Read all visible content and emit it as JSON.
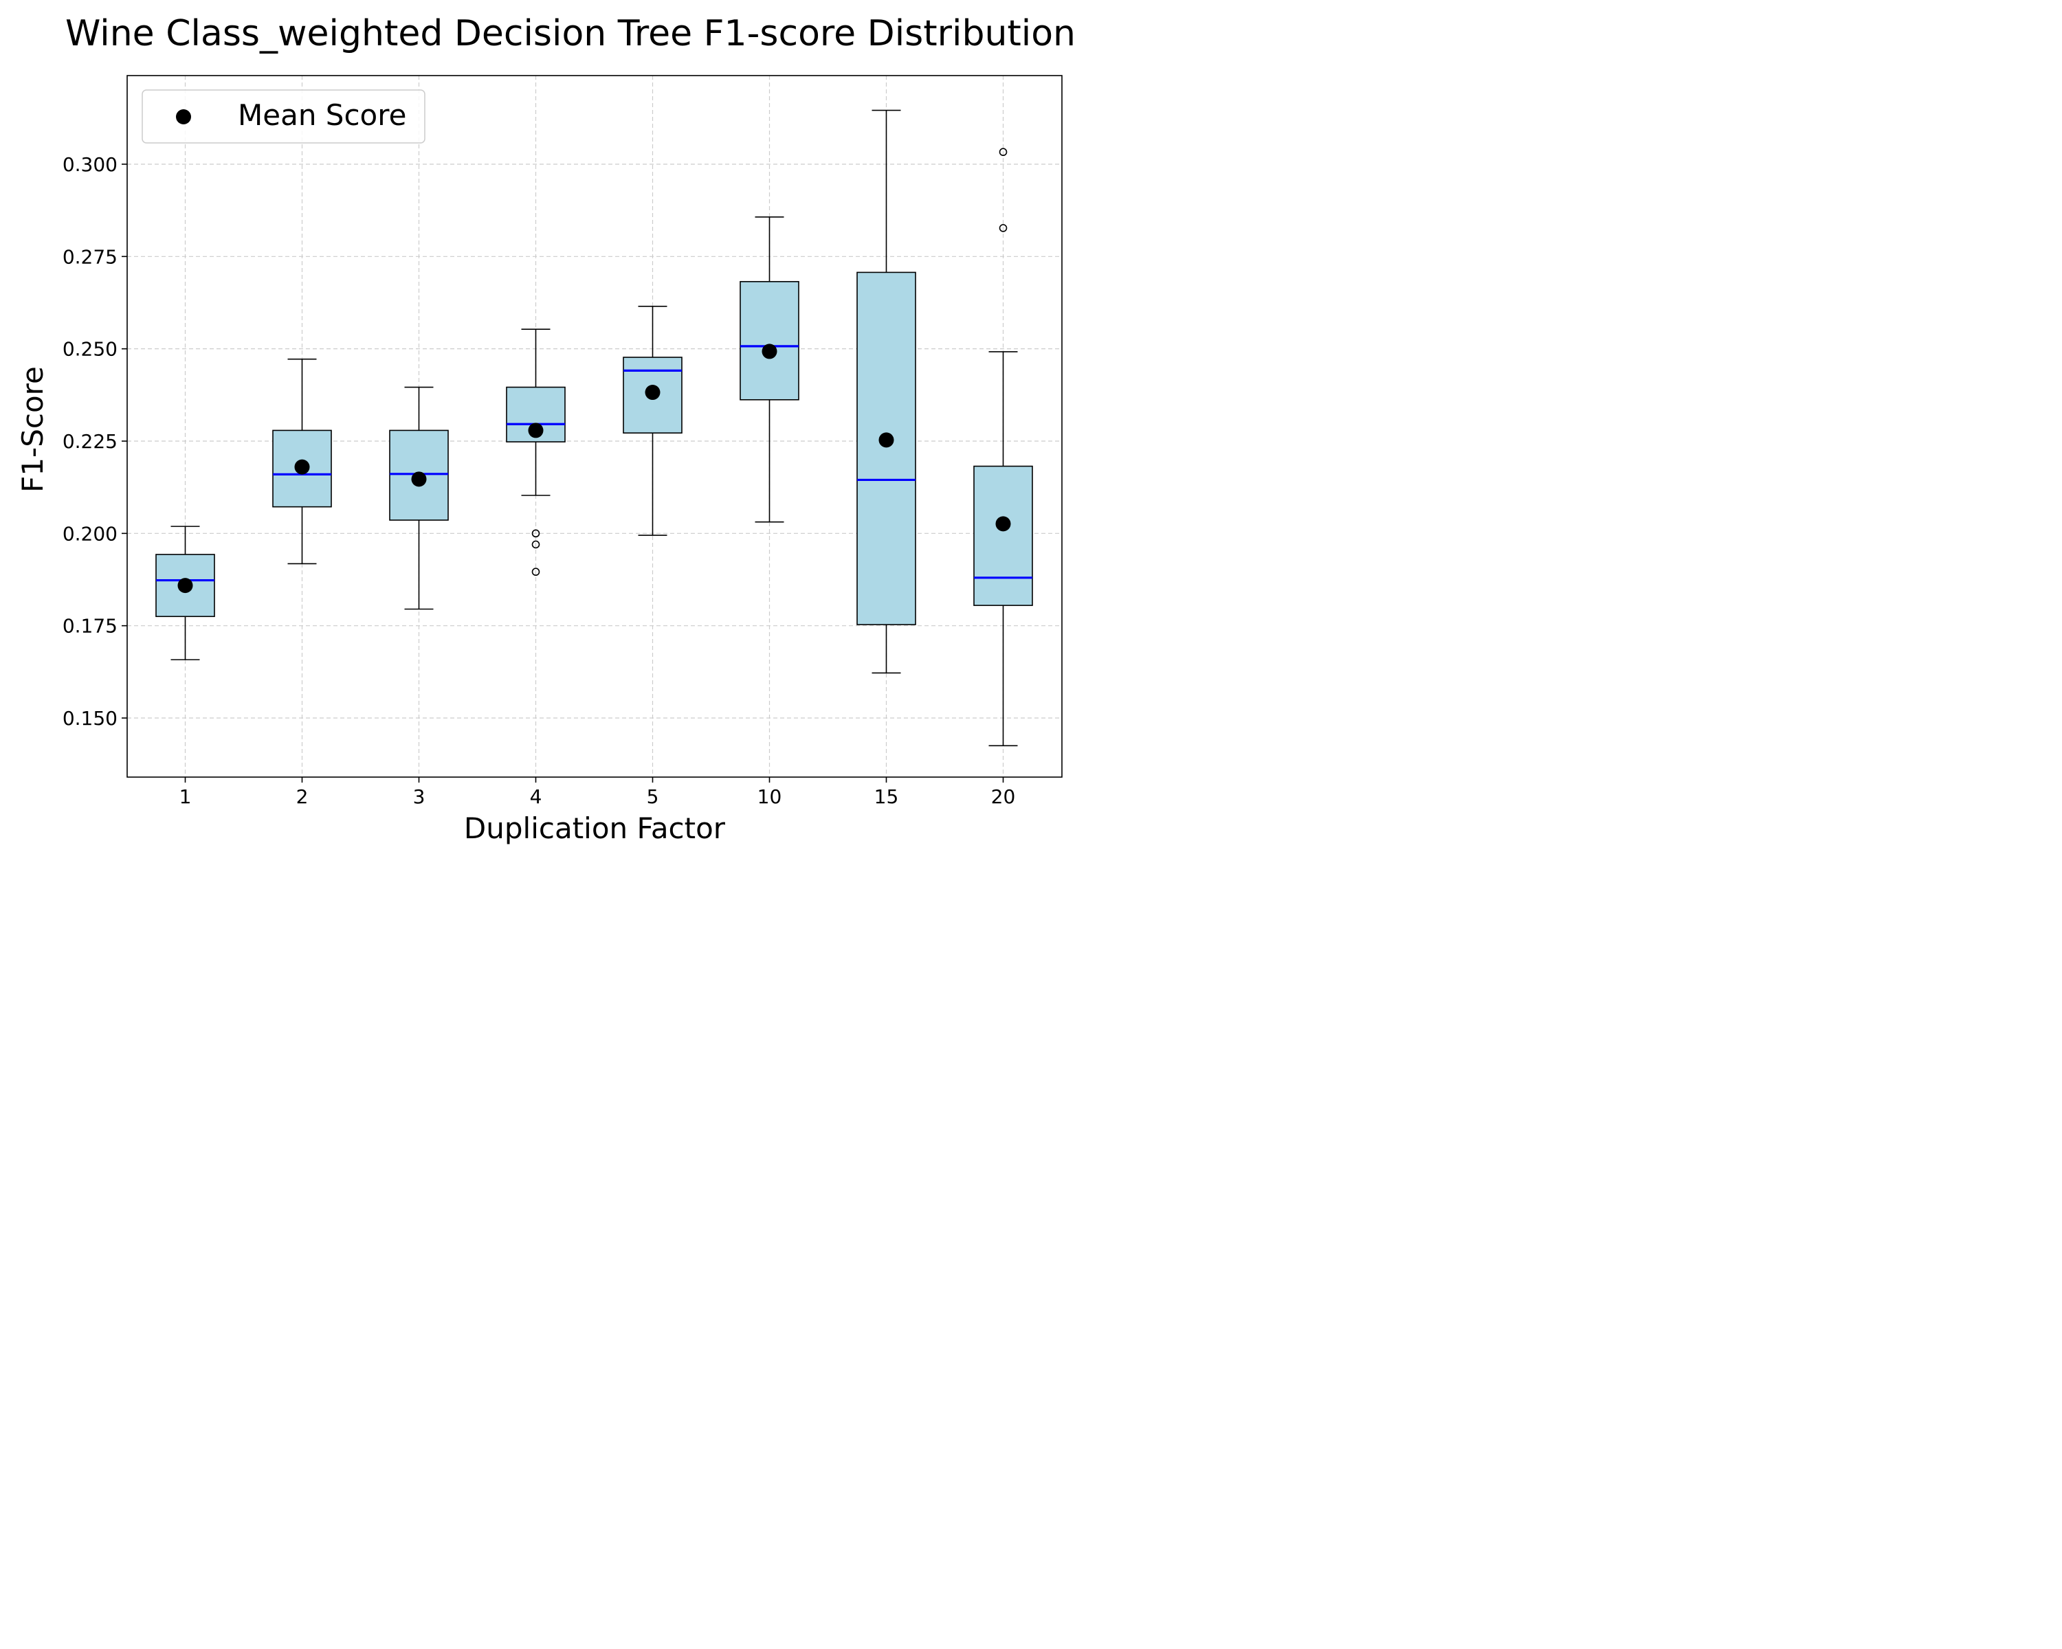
{
  "chart_data": {
    "type": "box",
    "title": "Wine Class_weighted Decision Tree F1-score Distribution",
    "xlabel": "Duplication Factor",
    "ylabel": "F1-Score",
    "ylim": [
      0.134,
      0.324
    ],
    "yticks": [
      "0.150",
      "0.175",
      "0.200",
      "0.225",
      "0.250",
      "0.275",
      "0.300"
    ],
    "grid": true,
    "legend": {
      "position": "top-left",
      "entries": [
        "Mean Score"
      ]
    },
    "colors": {
      "box_fill": "#add8e6",
      "median": "#0000ff",
      "mean_marker": "#000000",
      "grid": "#cccccc"
    },
    "categories": [
      "1",
      "2",
      "3",
      "4",
      "5",
      "10",
      "15",
      "20"
    ],
    "boxes": [
      {
        "category": "1",
        "whisker_low": 0.1658,
        "q1": 0.1775,
        "median": 0.1873,
        "q3": 0.1943,
        "whisker_high": 0.2019,
        "mean": 0.1859,
        "outliers": []
      },
      {
        "category": "2",
        "whisker_low": 0.1918,
        "q1": 0.2072,
        "median": 0.216,
        "q3": 0.2279,
        "whisker_high": 0.2472,
        "mean": 0.218,
        "outliers": []
      },
      {
        "category": "3",
        "whisker_low": 0.1795,
        "q1": 0.2036,
        "median": 0.2161,
        "q3": 0.2279,
        "whisker_high": 0.2396,
        "mean": 0.2147,
        "outliers": []
      },
      {
        "category": "4",
        "whisker_low": 0.2103,
        "q1": 0.2248,
        "median": 0.2296,
        "q3": 0.2396,
        "whisker_high": 0.2553,
        "mean": 0.2279,
        "outliers": [
          0.2,
          0.197,
          0.1896
        ]
      },
      {
        "category": "5",
        "whisker_low": 0.1995,
        "q1": 0.2272,
        "median": 0.2441,
        "q3": 0.2477,
        "whisker_high": 0.2615,
        "mean": 0.2382,
        "outliers": []
      },
      {
        "category": "10",
        "whisker_low": 0.2031,
        "q1": 0.2362,
        "median": 0.2507,
        "q3": 0.2682,
        "whisker_high": 0.2857,
        "mean": 0.2493,
        "outliers": []
      },
      {
        "category": "15",
        "whisker_low": 0.1622,
        "q1": 0.1753,
        "median": 0.2145,
        "q3": 0.2707,
        "whisker_high": 0.3146,
        "mean": 0.2253,
        "outliers": []
      },
      {
        "category": "20",
        "whisker_low": 0.1425,
        "q1": 0.1805,
        "median": 0.188,
        "q3": 0.2182,
        "whisker_high": 0.2492,
        "mean": 0.2026,
        "outliers": [
          0.3033,
          0.2827
        ]
      }
    ]
  }
}
